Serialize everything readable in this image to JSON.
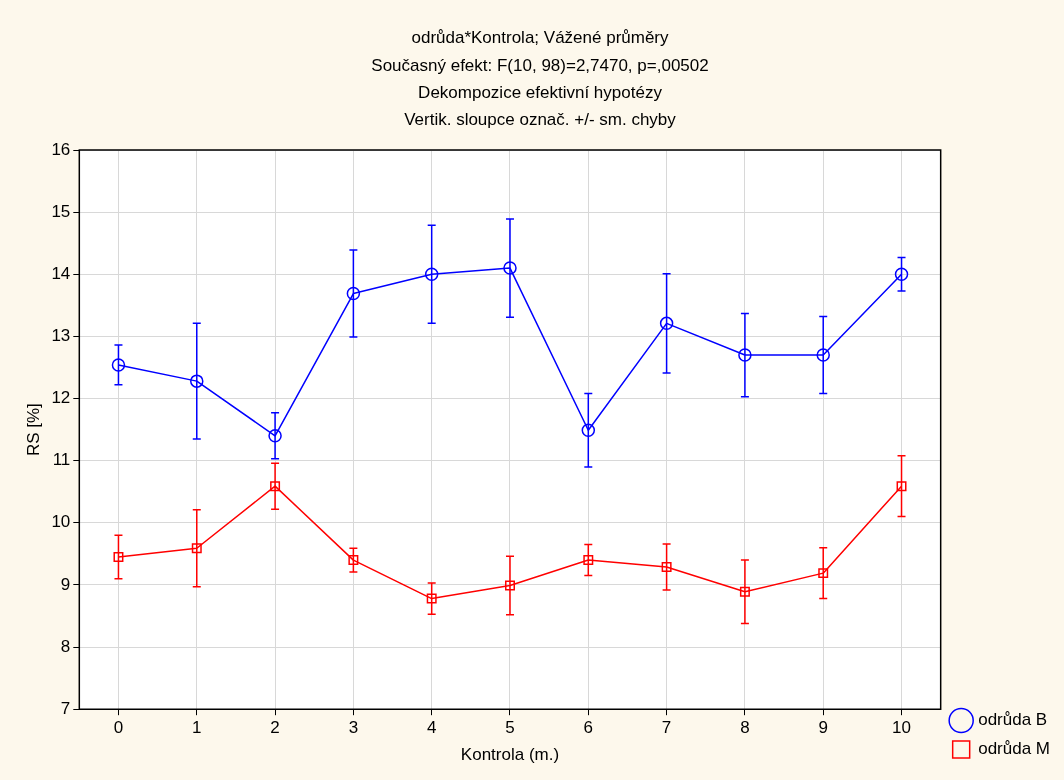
{
  "chart_data": {
    "type": "line",
    "title": "odrůda*Kontrola; Vážené průměry",
    "subtitle": "Současný efekt: F(10, 98)=2,7470, p=,00502\nDekompozice efektivní hypotézy\nVertik. sloupce označ. +/- sm. chyby",
    "xlabel": "Kontrola (m.)",
    "ylabel": "RS [%]",
    "categories": [
      "0",
      "1",
      "2",
      "3",
      "4",
      "5",
      "6",
      "7",
      "8",
      "9",
      "10"
    ],
    "series": [
      {
        "name": "odrůda B",
        "color": "#0000ff",
        "marker": "circle",
        "values": [
          12.54,
          12.28,
          11.4,
          13.69,
          14.0,
          14.1,
          11.49,
          13.21,
          12.7,
          12.7,
          14.0
        ],
        "errors": [
          0.32,
          0.93,
          0.37,
          0.7,
          0.79,
          0.79,
          0.59,
          0.8,
          0.67,
          0.62,
          0.27
        ]
      },
      {
        "name": "odrůda M",
        "color": "#ff0000",
        "marker": "square",
        "values": [
          9.45,
          9.59,
          10.59,
          9.4,
          8.78,
          8.99,
          9.4,
          9.29,
          8.89,
          9.19,
          10.59
        ],
        "errors": [
          0.35,
          0.62,
          0.37,
          0.19,
          0.25,
          0.47,
          0.25,
          0.37,
          0.51,
          0.41,
          0.49
        ]
      }
    ],
    "ylim": [
      7,
      16
    ],
    "yticks": [
      7,
      8,
      9,
      10,
      11,
      12,
      13,
      14,
      15,
      16
    ],
    "grid": true,
    "legend": "bottom right",
    "line_style": "solid"
  }
}
